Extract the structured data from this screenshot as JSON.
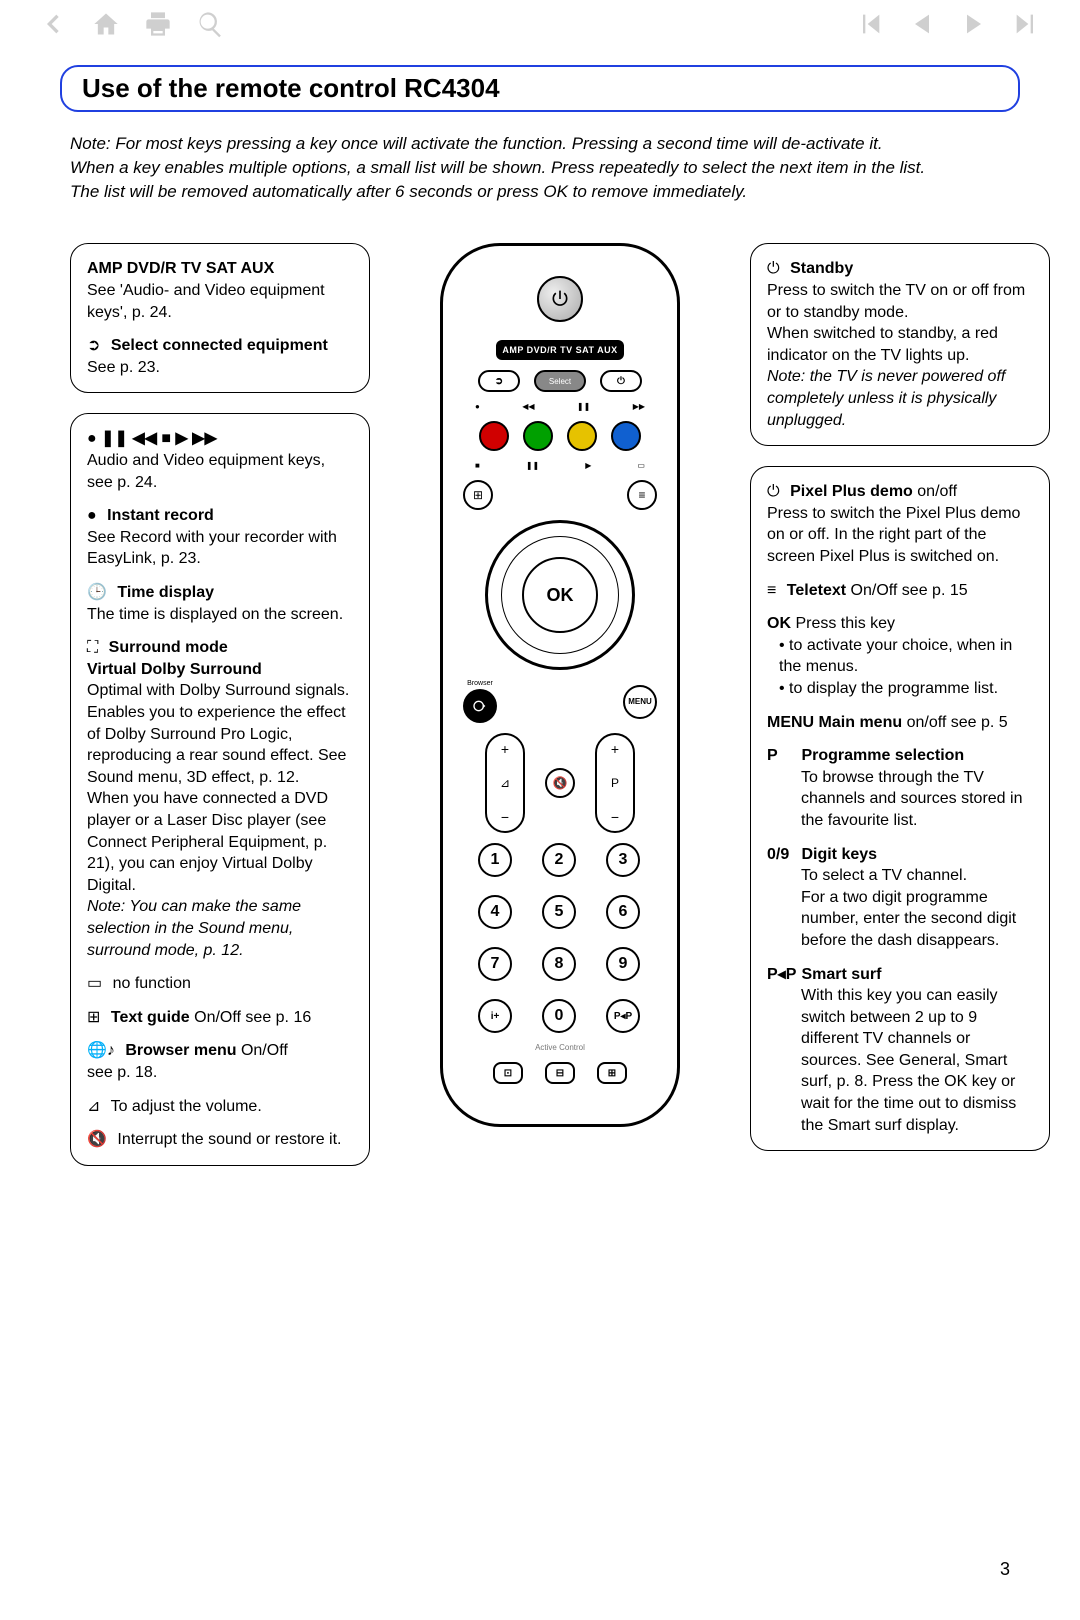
{
  "title": "Use of the remote control RC4304",
  "intro_lines": [
    "Note: For most keys pressing a key once will activate the function. Pressing a second time will de-activate it.",
    "When a key enables multiple options, a small list will be shown. Press repeatedly to select the next item in the list.",
    "The list will be removed automatically after 6 seconds or press OK to remove immediately."
  ],
  "page_number": "3",
  "remote": {
    "mode_bar": "AMP  DVD/R  TV  SAT  AUX",
    "select": "Select",
    "ok": "OK",
    "browser_label": "Browser",
    "menu": "MENU",
    "p_label": "P",
    "pp": "P◂P",
    "active_control": "Active Control",
    "keypad": [
      "1",
      "2",
      "3",
      "4",
      "5",
      "6",
      "7",
      "8",
      "9",
      "",
      "0",
      ""
    ],
    "color_buttons": [
      "#d00000",
      "#00a000",
      "#e6c200",
      "#1060d0"
    ]
  },
  "left_box1": {
    "h1": "AMP  DVD/R  TV  SAT  AUX",
    "t1": "See 'Audio- and Video equipment keys', p. 24.",
    "h2": "Select connected equipment",
    "t2": "See p. 23."
  },
  "left_box2": {
    "sym": "● ❚❚ ◀◀ ■ ▶ ▶▶",
    "t1": "Audio and Video equipment keys, see p. 24.",
    "h2": "Instant record",
    "t2": "See Record with your recorder with EasyLink, p. 23.",
    "h3": "Time display",
    "t3": "The time is displayed on the screen.",
    "h4": "Surround mode",
    "h4b": "Virtual Dolby Surround",
    "t4": "Optimal with Dolby Surround signals. Enables you to experience the effect of Dolby Surround Pro Logic, reproducing a rear sound effect. See Sound menu, 3D effect, p. 12.\nWhen you have connected a DVD player or a Laser Disc player (see Connect Peripheral Equipment, p. 21), you can enjoy Virtual Dolby Digital.",
    "t4n": "Note: You can make the same selection in the Sound menu, surround mode, p. 12.",
    "t5": "no function",
    "h6": "Text guide",
    "t6": " On/Off  see p. 16",
    "h7": "Browser menu",
    "t7": " On/Off\nsee p. 18.",
    "t8": "To adjust the volume.",
    "t9": "Interrupt the sound or restore it."
  },
  "right_box1": {
    "h1": "Standby",
    "t1": "Press to switch the TV on or off from or to standby mode.\nWhen switched to standby, a red indicator on the TV lights up.",
    "t1n": "Note: the TV is never powered off completely unless it is physically unplugged."
  },
  "right_box2": {
    "h1": "Pixel Plus demo",
    "h1s": " on/off",
    "t1": "Press to switch the Pixel Plus demo on or off. In the right part of the screen Pixel Plus is switched on.",
    "h2": "Teletext",
    "t2": " On/Off  see p. 15",
    "h3": "OK",
    "t3a": " Press this key",
    "t3b": "• to activate your choice, when in the menus.",
    "t3c": "• to display the programme list.",
    "h4": "MENU Main menu",
    "t4": " on/off  see p. 5",
    "h5p": "P",
    "h5": "Programme selection",
    "t5": "To browse through the TV channels and sources stored in the favourite list.",
    "h6p": "0/9",
    "h6": "Digit keys",
    "t6": "To select a TV channel.\nFor a two digit programme number, enter the second digit before the dash disappears.",
    "h7p": "P◂P",
    "h7": "Smart surf",
    "t7": "With this key you can easily switch between 2 up to 9 different TV channels or sources. See General, Smart surf, p. 8. Press the OK key or wait for the time out to dismiss the Smart surf display."
  }
}
